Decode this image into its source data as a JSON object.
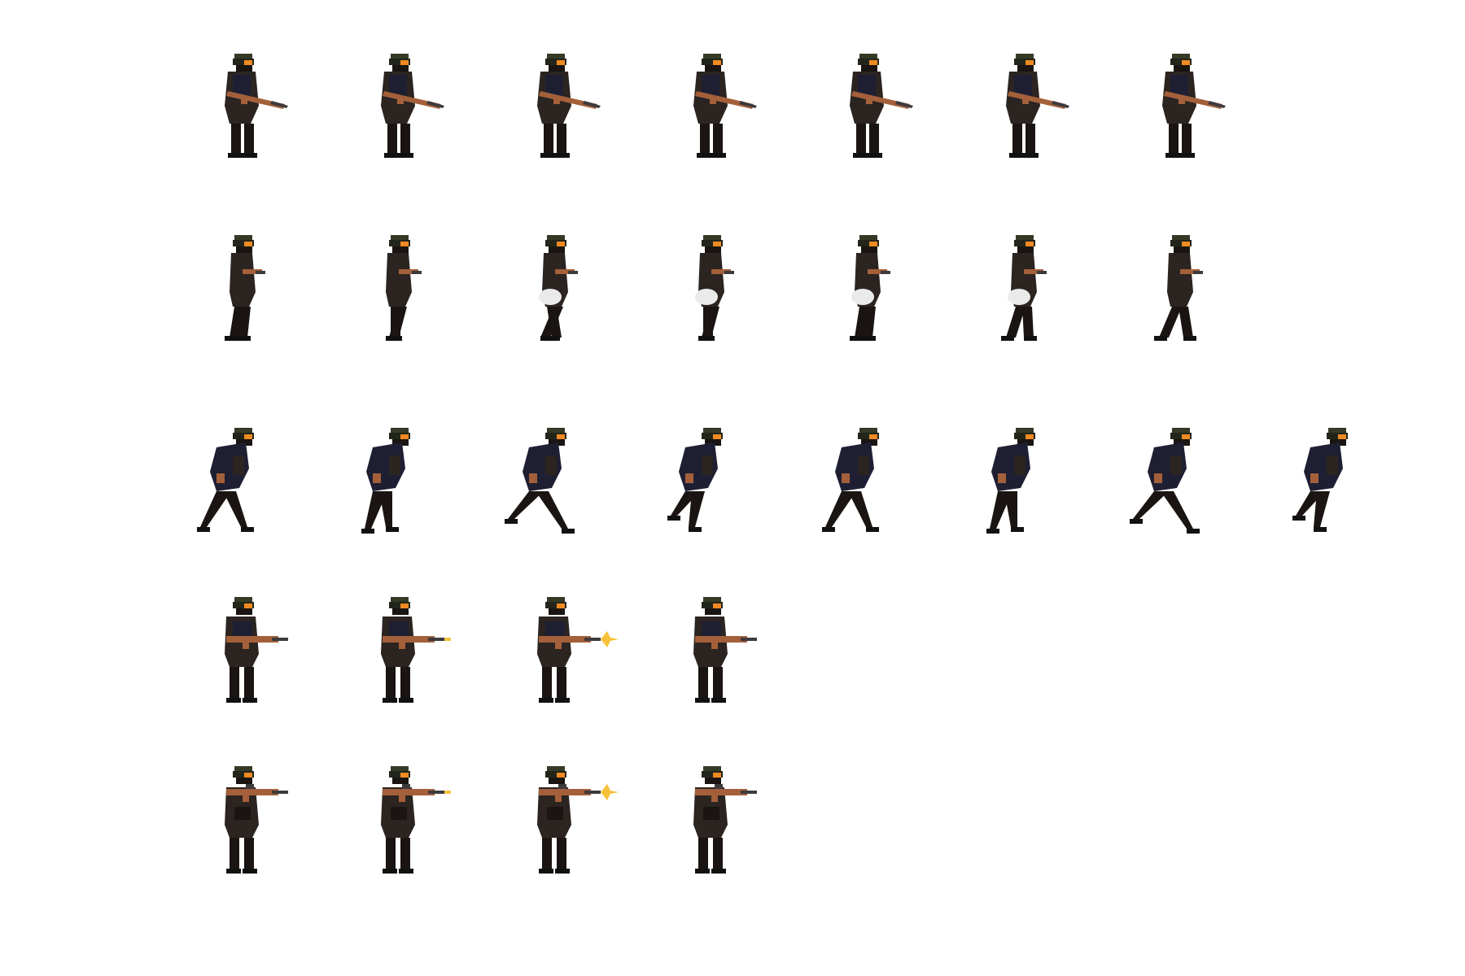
{
  "colors": {
    "background": "#ffffff",
    "helmet": "#353a27",
    "helmet_dark": "#22261a",
    "visor": "#f08a22",
    "uniform": "#2b2420",
    "uniform_dark": "#1a1512",
    "vest": "#1e1f33",
    "rifle_wood": "#a4603a",
    "rifle_metal": "#3c3a3d",
    "boot": "#111111",
    "smoke": "#eaeaea",
    "muzzle_flash": "#f7c23b"
  },
  "rows": [
    {
      "name": "idle-row",
      "pose": "idle",
      "frames": [
        0,
        0,
        0,
        0,
        0,
        0,
        0
      ],
      "flash": [
        0,
        0,
        0,
        0,
        0,
        0,
        0
      ],
      "smoke": [
        0,
        0,
        0,
        0,
        0,
        0,
        0
      ]
    },
    {
      "name": "walk-row",
      "pose": "walk",
      "frames": [
        0,
        1,
        2,
        3,
        4,
        5,
        6
      ],
      "flash": [
        0,
        0,
        0,
        0,
        0,
        0,
        0
      ],
      "smoke": [
        0,
        0,
        1,
        1,
        1,
        1,
        0
      ]
    },
    {
      "name": "run-row",
      "pose": "run",
      "frames": [
        0,
        1,
        2,
        3,
        4,
        5,
        6,
        7
      ],
      "flash": [
        0,
        0,
        0,
        0,
        0,
        0,
        0,
        0
      ],
      "smoke": [
        0,
        0,
        0,
        0,
        0,
        0,
        0,
        0
      ]
    },
    {
      "name": "shoot-hip-row",
      "pose": "shoot",
      "frames": [
        0,
        1,
        2,
        3
      ],
      "flash": [
        0,
        1,
        2,
        0
      ],
      "smoke": [
        0,
        0,
        0,
        0
      ]
    },
    {
      "name": "shoot-aim-row",
      "pose": "aim",
      "frames": [
        0,
        1,
        2,
        3
      ],
      "flash": [
        0,
        1,
        2,
        0
      ],
      "smoke": [
        0,
        0,
        0,
        0
      ]
    }
  ]
}
